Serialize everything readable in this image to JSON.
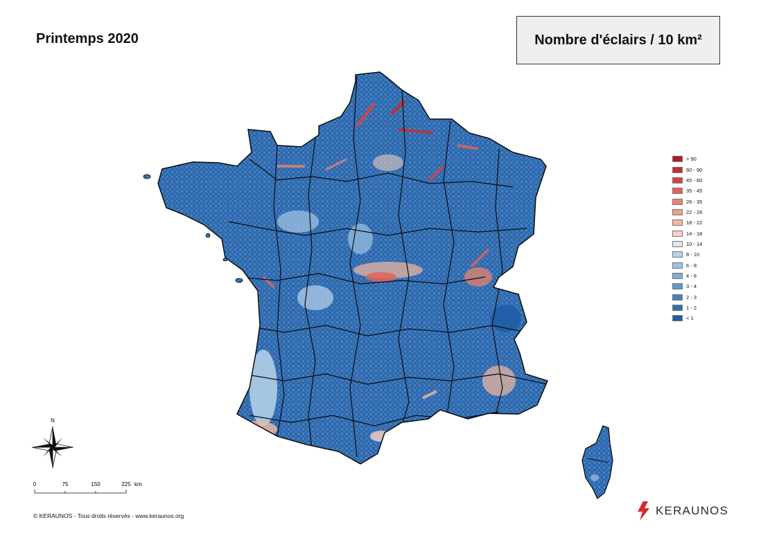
{
  "title": "Printemps 2020",
  "metric": "Nombre d'éclairs / 10 km²",
  "legend": [
    {
      "label": "> 90",
      "color": "#b2182b"
    },
    {
      "label": "60 - 90",
      "color": "#c62d35"
    },
    {
      "label": "45 - 60",
      "color": "#d6453f"
    },
    {
      "label": "35 - 45",
      "color": "#e0645a"
    },
    {
      "label": "26 - 35",
      "color": "#e8836f"
    },
    {
      "label": "22 - 26",
      "color": "#efa086"
    },
    {
      "label": "18 - 22",
      "color": "#f4b99f"
    },
    {
      "label": "14 - 18",
      "color": "#f9d3c0"
    },
    {
      "label": "10 - 14",
      "color": "#dbe7f1"
    },
    {
      "label": "8 - 10",
      "color": "#b9d4ea"
    },
    {
      "label": "6 - 8",
      "color": "#9dc3e1"
    },
    {
      "label": "4 - 6",
      "color": "#7faed6"
    },
    {
      "label": "3 - 4",
      "color": "#6099c9"
    },
    {
      "label": "2 - 3",
      "color": "#4581bd"
    },
    {
      "label": "1 - 2",
      "color": "#2f6fb2"
    },
    {
      "label": "< 1",
      "color": "#1f5ea7"
    }
  ],
  "compass": {
    "north_label": "N"
  },
  "scale": {
    "ticks": [
      "0",
      "75",
      "150",
      "225"
    ],
    "unit": "km"
  },
  "copyright": "© KERAUNOS - Tous droits réservés - www.keraunos.org",
  "brand": {
    "name": "KERAUNOS",
    "logo_icon": "lightning-bolt-icon"
  }
}
